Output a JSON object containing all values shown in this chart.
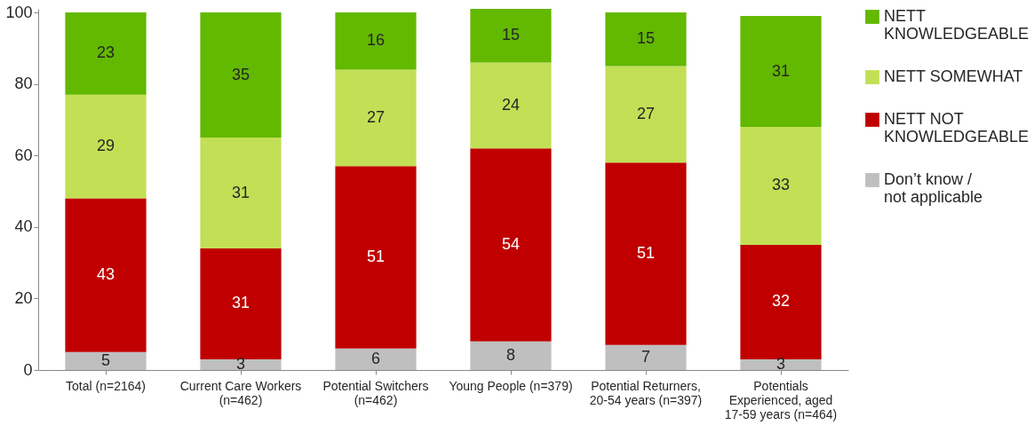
{
  "chart_data": {
    "type": "bar",
    "stacked": true,
    "categories": [
      "Total (n=2164)",
      "Current Care Workers (n=462)",
      "Potential Switchers (n=462)",
      "Young People (n=379)",
      "Potential Returners, 20-54 years (n=397)",
      "Potentials Experienced, aged 17-59 years (n=464)"
    ],
    "series": [
      {
        "name": "Don’t know / not applicable",
        "color": "#bfbfbf",
        "values": [
          5,
          3,
          6,
          8,
          7,
          3
        ]
      },
      {
        "name": "NETT NOT KNOWLEDGEABLE",
        "color": "#c00000",
        "values": [
          43,
          31,
          51,
          54,
          51,
          32
        ]
      },
      {
        "name": "NETT SOMEWHAT",
        "color": "#c3df55",
        "values": [
          29,
          31,
          27,
          24,
          27,
          33
        ]
      },
      {
        "name": "NETT KNOWLEDGEABLE",
        "color": "#63b800",
        "values": [
          23,
          35,
          16,
          15,
          15,
          31
        ]
      }
    ],
    "ylim": [
      0,
      101
    ],
    "yticks": [
      0,
      20,
      40,
      60,
      80,
      100
    ],
    "grid": false,
    "legend": "right",
    "data_labels": true
  }
}
